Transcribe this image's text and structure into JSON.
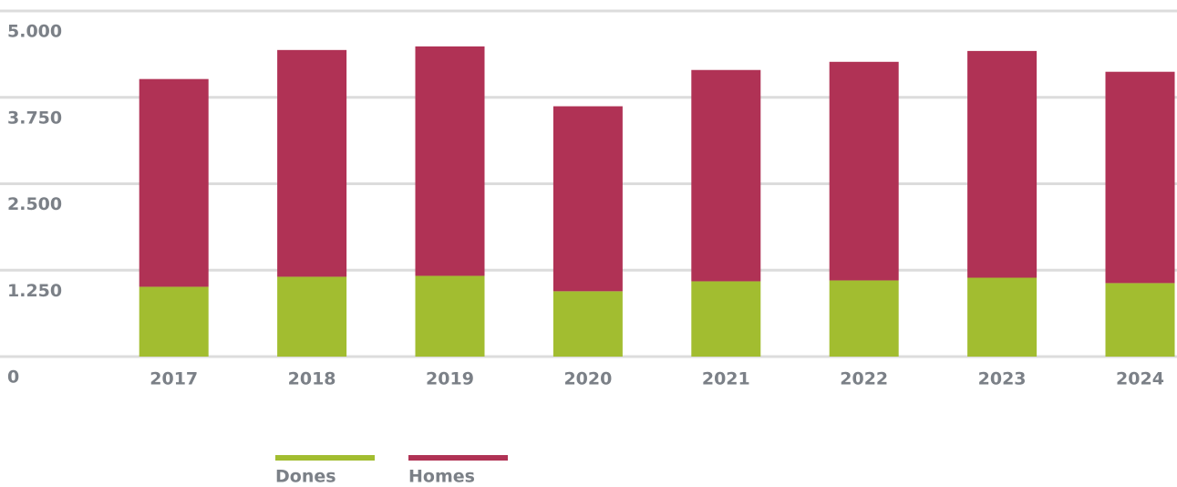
{
  "chart_data": {
    "type": "bar",
    "stacked": true,
    "categories": [
      "2017",
      "2018",
      "2019",
      "2020",
      "2021",
      "2022",
      "2023",
      "2024"
    ],
    "series": [
      {
        "name": "Dones",
        "color": "#a2bd30",
        "values": [
          1010,
          1155,
          1168,
          945,
          1089,
          1102,
          1141,
          1063
        ]
      },
      {
        "name": "Homes",
        "color": "#b03255",
        "values": [
          3005,
          3280,
          3319,
          2676,
          3057,
          3162,
          3280,
          3057
        ]
      }
    ],
    "ylim": [
      0,
      5000
    ],
    "yticks": [
      0,
      {
        "value": 1250,
        "label": "1.250"
      },
      {
        "value": 2500,
        "label": "2.500"
      },
      {
        "value": 3750,
        "label": "3.750"
      },
      {
        "value": 5000,
        "label": "5.000"
      }
    ],
    "grid": true,
    "legend": "bottom"
  }
}
